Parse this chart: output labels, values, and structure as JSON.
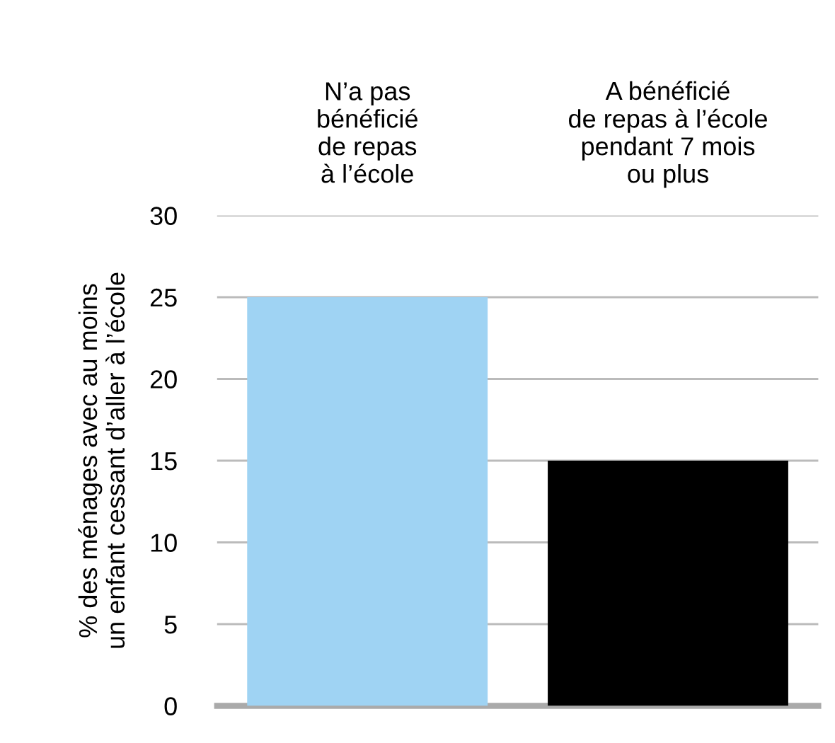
{
  "chart_data": {
    "type": "bar",
    "ylabel": "% des ménages avec au moins\nun enfant cessant d’aller à l’école",
    "categories": [
      "N’a pas\nbénéficié\nde repas\nà l’école",
      "A bénéficié\nde repas à l’école\npendant 7 mois\nou plus"
    ],
    "values": [
      25,
      15
    ],
    "colors": [
      "#9fd3f3",
      "#000000"
    ],
    "ylim": [
      0,
      30
    ],
    "yticks": [
      0,
      5,
      10,
      15,
      20,
      25,
      30
    ],
    "grid": "y"
  }
}
